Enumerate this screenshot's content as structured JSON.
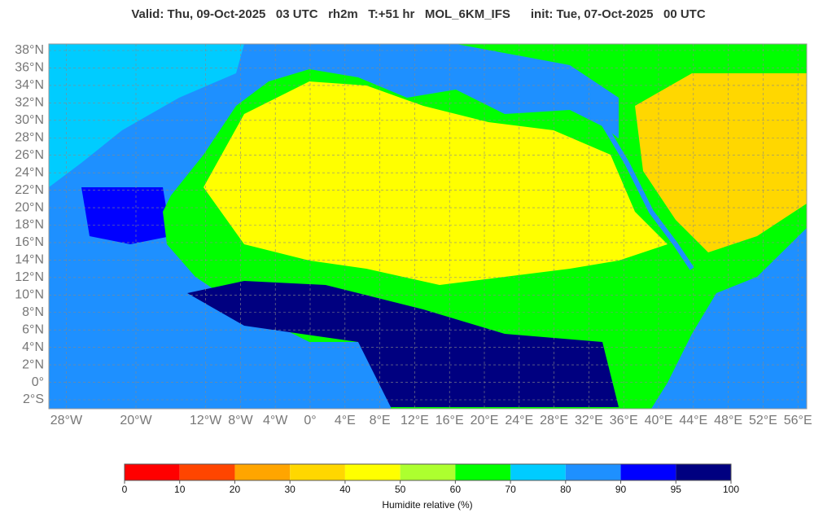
{
  "header": {
    "title": "Valid: Thu, 09-Oct-2025   03 UTC   rh2m   T:+51 hr   MOL_6KM_IFS      init: Tue, 07-Oct-2025   00 UTC"
  },
  "map": {
    "lat_ticks": [
      {
        "value": 38,
        "label": "38°N"
      },
      {
        "value": 36,
        "label": "36°N"
      },
      {
        "value": 34,
        "label": "34°N"
      },
      {
        "value": 32,
        "label": "32°N"
      },
      {
        "value": 30,
        "label": "30°N"
      },
      {
        "value": 28,
        "label": "28°N"
      },
      {
        "value": 26,
        "label": "26°N"
      },
      {
        "value": 24,
        "label": "24°N"
      },
      {
        "value": 22,
        "label": "22°N"
      },
      {
        "value": 20,
        "label": "20°N"
      },
      {
        "value": 18,
        "label": "18°N"
      },
      {
        "value": 16,
        "label": "16°N"
      },
      {
        "value": 14,
        "label": "14°N"
      },
      {
        "value": 12,
        "label": "12°N"
      },
      {
        "value": 10,
        "label": "10°N"
      },
      {
        "value": 8,
        "label": "8°N"
      },
      {
        "value": 6,
        "label": "6°N"
      },
      {
        "value": 4,
        "label": "4°N"
      },
      {
        "value": 2,
        "label": "2°N"
      },
      {
        "value": 0,
        "label": "0°"
      },
      {
        "value": -2,
        "label": "2°S"
      }
    ],
    "lon_ticks": [
      {
        "value": -28,
        "label": "28°W"
      },
      {
        "value": -20,
        "label": "20°W"
      },
      {
        "value": -12,
        "label": "12°W"
      },
      {
        "value": -8,
        "label": "8°W"
      },
      {
        "value": -4,
        "label": "4°W"
      },
      {
        "value": 0,
        "label": "0°"
      },
      {
        "value": 4,
        "label": "4°E"
      },
      {
        "value": 8,
        "label": "8°E"
      },
      {
        "value": 12,
        "label": "12°E"
      },
      {
        "value": 16,
        "label": "16°E"
      },
      {
        "value": 20,
        "label": "20°E"
      },
      {
        "value": 24,
        "label": "24°E"
      },
      {
        "value": 28,
        "label": "28°E"
      },
      {
        "value": 32,
        "label": "32°E"
      },
      {
        "value": 36,
        "label": "36°E"
      },
      {
        "value": 40,
        "label": "40°E"
      },
      {
        "value": 44,
        "label": "44°E"
      },
      {
        "value": 48,
        "label": "48°E"
      },
      {
        "value": 52,
        "label": "52°E"
      },
      {
        "value": 56,
        "label": "56°E"
      }
    ]
  },
  "colorbar": {
    "ticks": [
      0,
      10,
      20,
      30,
      40,
      50,
      60,
      70,
      80,
      90,
      95,
      100
    ],
    "colors": [
      "#ff0000",
      "#ff4500",
      "#ffa500",
      "#ffd700",
      "#ffff00",
      "#adff2f",
      "#00ff00",
      "#00ccff",
      "#1e90ff",
      "#0000ff",
      "#000080"
    ],
    "label": "Humidite relative (%)"
  }
}
